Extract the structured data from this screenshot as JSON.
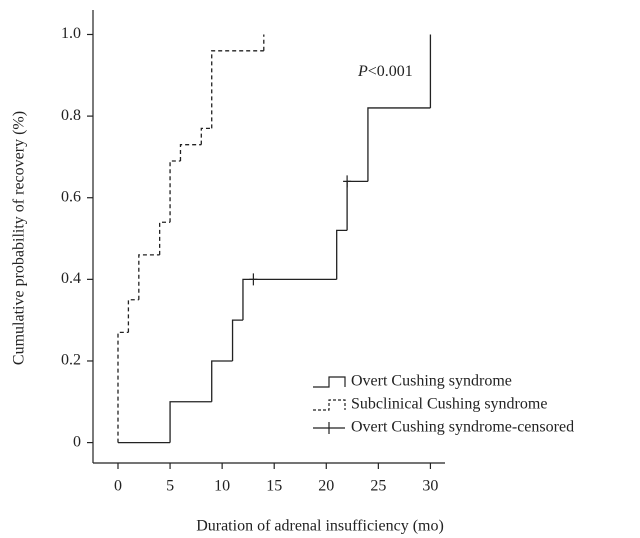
{
  "chart_data": {
    "type": "step",
    "x_label": "Duration of adrenal insufficiency (mo)",
    "y_label": "Cumulative probability of recovery (%)",
    "annotation": [
      "P",
      "<0.001"
    ],
    "xlim": [
      -2.4,
      31.4
    ],
    "ylim": [
      -0.05,
      1.06
    ],
    "xticks": [
      0,
      5,
      10,
      15,
      20,
      25,
      30
    ],
    "yticks": [
      0,
      0.2,
      0.4,
      0.6,
      0.8,
      {
        "value": 1,
        "label": "1.0"
      }
    ],
    "legend": "lower right",
    "series": [
      {
        "name": "Overt Cushing syndrome",
        "color": "#222222",
        "dash": false,
        "x": [
          0,
          5,
          9,
          11,
          12,
          21,
          22,
          24,
          30
        ],
        "values": [
          0,
          0.1,
          0.2,
          0.3,
          0.4,
          0.52,
          0.64,
          0.82,
          1.0
        ]
      },
      {
        "name": "Subclinical Cushing syndrome",
        "color": "#222222",
        "dash": true,
        "x": [
          0,
          0,
          1,
          2,
          4,
          5,
          6,
          8,
          9,
          14
        ],
        "values": [
          0,
          0.27,
          0.35,
          0.46,
          0.54,
          0.69,
          0.73,
          0.77,
          0.96,
          1.0
        ]
      },
      {
        "name": "Overt Cushing syndrome-censored",
        "color": "#222222",
        "censored": true,
        "x": [
          13,
          22
        ],
        "values": [
          0.4,
          0.64
        ]
      }
    ]
  }
}
